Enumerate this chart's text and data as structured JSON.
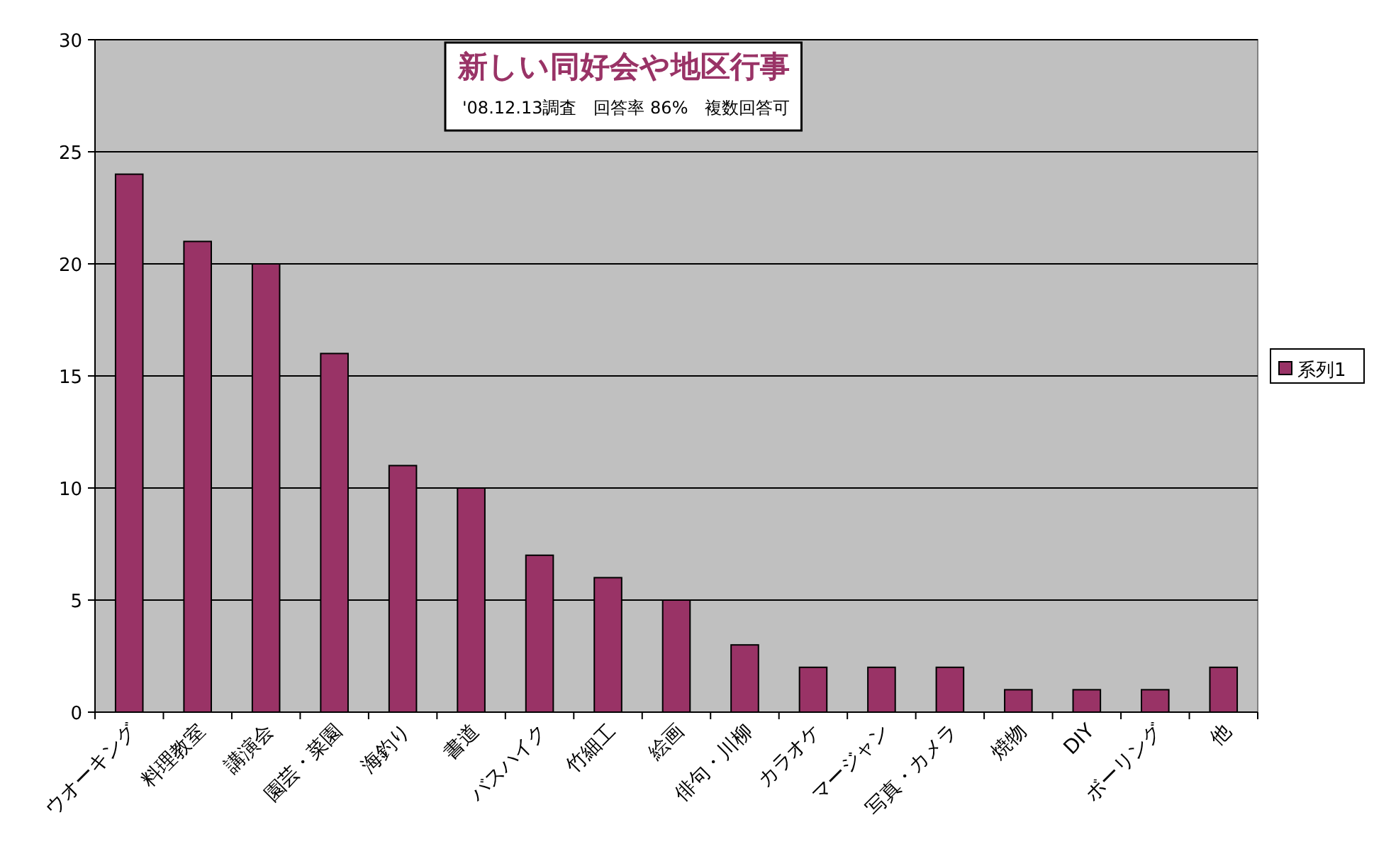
{
  "chart_data": {
    "type": "bar",
    "title": "新しい同好会や地区行事",
    "subtitle": "'08.12.13調査　回答率 86%　複数回答可",
    "categories": [
      "ウオーキング",
      "料理教室",
      "講演会",
      "園芸・菜園",
      "海釣り",
      "書道",
      "バスハイク",
      "竹細工",
      "絵画",
      "俳句・川柳",
      "カラオケ",
      "マージャン",
      "写真・カメラ",
      "焼物",
      "DIY",
      "ボーリング",
      "他"
    ],
    "series": [
      {
        "name": "系列1",
        "color": "#993366",
        "values": [
          24,
          21,
          20,
          16,
          11,
          10,
          7,
          6,
          5,
          3,
          2,
          2,
          2,
          1,
          1,
          1,
          2
        ]
      }
    ],
    "ylim": [
      0,
      30
    ],
    "yticks": [
      0,
      5,
      10,
      15,
      20,
      25,
      30
    ],
    "grid": "y",
    "legend": "right"
  }
}
